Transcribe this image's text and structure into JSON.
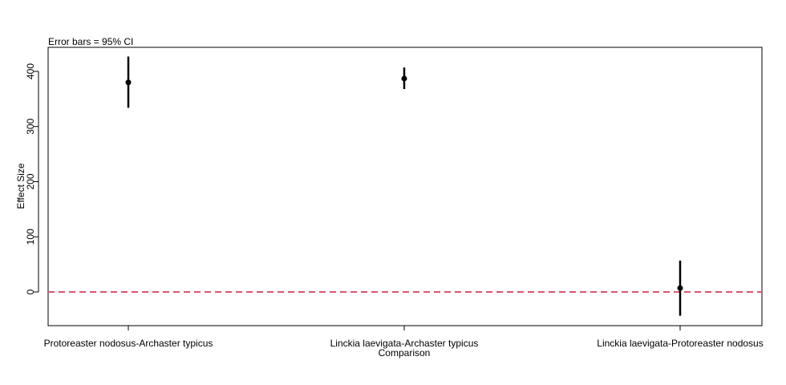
{
  "chart_data": {
    "type": "scatter",
    "annotation": "Error bars = 95% CI",
    "xlabel": "Comparison",
    "ylabel": "Effect Size",
    "categories": [
      "Protoreaster nodosus-Archaster typicus",
      "Linckia laevigata-Archaster typicus",
      "Linckia laevigata-Protoreaster nodosus"
    ],
    "values": [
      380,
      387,
      7
    ],
    "ci_lower": [
      334,
      368,
      -43
    ],
    "ci_upper": [
      427,
      407,
      57
    ],
    "ylim": [
      -62,
      443
    ],
    "yticks": [
      0,
      100,
      200,
      300,
      400
    ],
    "reference_line": 0,
    "reference_color": "#DF536B",
    "grid": false
  }
}
